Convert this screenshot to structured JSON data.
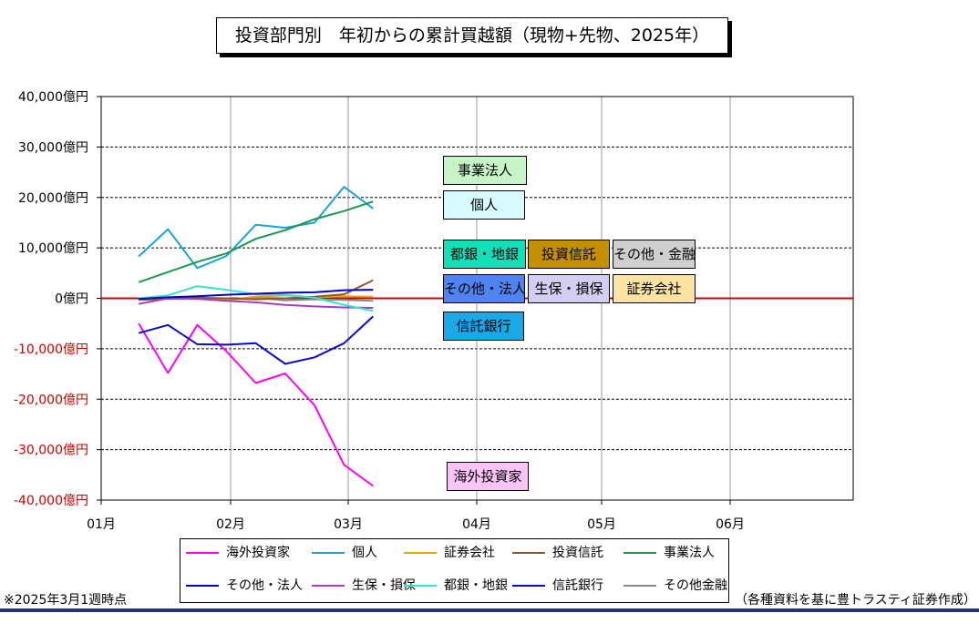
{
  "chart_data": {
    "type": "line",
    "title": "投資部門別　年初からの累計買越額（現物+先物、2025年）",
    "x_ticks": [
      "01月",
      "02月",
      "03月",
      "04月",
      "05月",
      "06月"
    ],
    "y_ticks": [
      "40,000億円",
      "30,000億円",
      "20,000億円",
      "10,000億円",
      "0億円",
      "-10,000億円",
      "-20,000億円",
      "-30,000億円",
      "-40,000億円"
    ],
    "ylim": [
      -40000,
      40000
    ],
    "grid": true,
    "legend_position": "bottom",
    "x": [
      "2025-01-10",
      "2025-01-17",
      "2025-01-24",
      "2025-01-31",
      "2025-02-07",
      "2025-02-14",
      "2025-02-21",
      "2025-02-28",
      "2025-03-07"
    ],
    "series": [
      {
        "name": "海外投資家",
        "color": "#ff00ff",
        "values": [
          -5000,
          -14800,
          -5300,
          -10500,
          -16800,
          -14900,
          -21200,
          -33000,
          -37200
        ]
      },
      {
        "name": "個人",
        "color": "#1aa3d9",
        "values": [
          8300,
          13700,
          6000,
          8400,
          14600,
          14000,
          15000,
          22100,
          17800
        ]
      },
      {
        "name": "証券会社",
        "color": "#f0a000",
        "values": [
          -200,
          100,
          200,
          -300,
          300,
          600,
          200,
          400,
          300
        ]
      },
      {
        "name": "投資信託",
        "color": "#8b5a2b",
        "values": [
          -300,
          -100,
          100,
          0,
          -200,
          0,
          300,
          800,
          3600
        ]
      },
      {
        "name": "事業法人",
        "color": "#1a9850",
        "values": [
          3200,
          5200,
          7200,
          8900,
          11800,
          13500,
          15700,
          17300,
          19200
        ]
      },
      {
        "name": "その他・法人",
        "color": "#0000cc",
        "values": [
          -100,
          200,
          400,
          700,
          900,
          1100,
          1200,
          1600,
          1700
        ]
      },
      {
        "name": "生保・損保",
        "color": "#a040c0",
        "values": [
          -1100,
          0,
          -100,
          -500,
          -800,
          -1300,
          -1600,
          -1800,
          -1900
        ]
      },
      {
        "name": "都銀・地銀",
        "color": "#33e6c8",
        "values": [
          0,
          600,
          2400,
          1700,
          800,
          700,
          100,
          -1300,
          -2500
        ]
      },
      {
        "name": "信託銀行",
        "color": "#0a0acc",
        "values": [
          -6900,
          -5300,
          -9100,
          -9200,
          -8900,
          -13000,
          -11700,
          -8900,
          -3600
        ]
      },
      {
        "name": "その他金融",
        "color": "#8a8a8a",
        "values": [
          0,
          -100,
          0,
          -300,
          100,
          -400,
          -200,
          -300,
          -500
        ]
      }
    ],
    "annotations": [
      {
        "text": "事業法人",
        "color": "#c6f4c6"
      },
      {
        "text": "個人",
        "color": "#d6fafd"
      },
      {
        "text": "都銀・地銀",
        "color": "#11e0b8"
      },
      {
        "text": "投資信託",
        "color": "#c39000"
      },
      {
        "text": "その他・金融",
        "color": "#cfcfcf"
      },
      {
        "text": "その他・法人",
        "color": "#4f84f0"
      },
      {
        "text": "生保・損保",
        "color": "#d3cff2"
      },
      {
        "text": "証券会社",
        "color": "#fde3a1"
      },
      {
        "text": "信託銀行",
        "color": "#1aa8e6"
      },
      {
        "text": "海外投資家",
        "color": "#fbc4f6"
      }
    ],
    "zero_line_color": "#cc0000"
  },
  "footnote": "※2025年3月1週時点",
  "source": "（各種資料を基に豊トラスティ証券作成）"
}
